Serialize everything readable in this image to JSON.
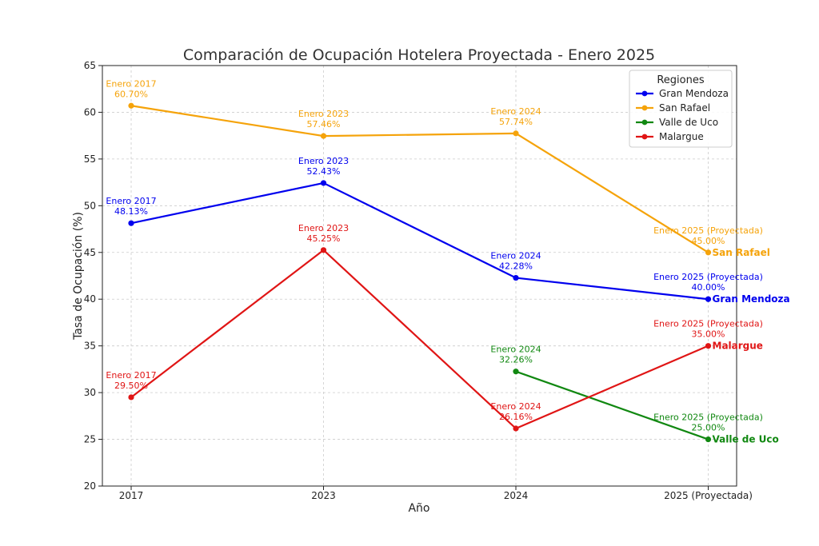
{
  "chart_data": {
    "type": "line",
    "title": "Comparación de Ocupación Hotelera Proyectada - Enero 2025",
    "xlabel": "Año",
    "ylabel": "Tasa de Ocupación (%)",
    "categories": [
      "2017",
      "2023",
      "2024",
      "2025 (Proyectada)"
    ],
    "ylim": [
      20,
      65
    ],
    "yticks": [
      20,
      25,
      30,
      35,
      40,
      45,
      50,
      55,
      60,
      65
    ],
    "grid": true,
    "legend": {
      "title": "Regiones",
      "placement": "top-right"
    },
    "series": [
      {
        "name": "Gran Mendoza",
        "color": "#0000ee",
        "values": [
          48.13,
          52.43,
          42.28,
          40.0
        ],
        "annotations": [
          [
            "Enero 2017",
            "48.13%"
          ],
          [
            "Enero 2023",
            "52.43%"
          ],
          [
            "Enero 2024",
            "42.28%"
          ],
          [
            "Enero 2025 (Proyectada)",
            "40.00%"
          ]
        ],
        "end_label": "Gran Mendoza"
      },
      {
        "name": "San Rafael",
        "color": "#f5a30a",
        "values": [
          60.7,
          57.46,
          57.74,
          45.0
        ],
        "annotations": [
          [
            "Enero 2017",
            "60.70%"
          ],
          [
            "Enero 2023",
            "57.46%"
          ],
          [
            "Enero 2024",
            "57.74%"
          ],
          [
            "Enero 2025 (Proyectada)",
            "45.00%"
          ]
        ],
        "end_label": "San Rafael"
      },
      {
        "name": "Valle de Uco",
        "color": "#118811",
        "values": [
          null,
          null,
          32.26,
          25.0
        ],
        "annotations": [
          null,
          null,
          [
            "Enero 2024",
            "32.26%"
          ],
          [
            "Enero 2025 (Proyectada)",
            "25.00%"
          ]
        ],
        "end_label": "Valle de Uco"
      },
      {
        "name": "Malargue",
        "color": "#e01515",
        "values": [
          29.5,
          45.25,
          26.16,
          35.0
        ],
        "annotations": [
          [
            "Enero 2017",
            "29.50%"
          ],
          [
            "Enero 2023",
            "45.25%"
          ],
          [
            "Enero 2024",
            "26.16%"
          ],
          [
            "Enero 2025 (Proyectada)",
            "35.00%"
          ]
        ],
        "end_label": "Malargue"
      }
    ]
  }
}
